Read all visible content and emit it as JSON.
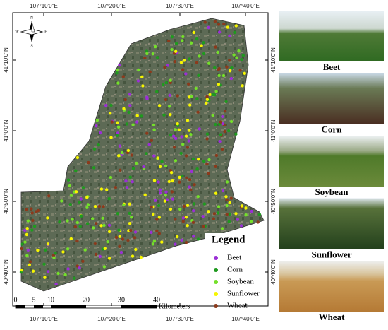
{
  "map": {
    "top_labels": [
      "107°10'0\"E",
      "107°20'0\"E",
      "107°30'0\"E",
      "107°40'0\"E"
    ],
    "bottom_labels": [
      "107°10'0\"E",
      "107°20'0\"E",
      "107°30'0\"E",
      "107°40'0\"E"
    ],
    "left_labels": [
      "41°10'0\"N",
      "41°0'0\"N",
      "40°50'0\"N",
      "40°40'0\"N"
    ],
    "right_labels": [
      "41°10'0\"N",
      "41°0'0\"N",
      "40°50'0\"N",
      "40°40'0\"N"
    ],
    "north_arrow": {
      "n": "N",
      "s": "S",
      "e": "E",
      "w": "W"
    },
    "scale_bar": {
      "labels": [
        "0",
        "5",
        "10",
        "20",
        "30",
        "40"
      ],
      "unit": "Kilometers"
    },
    "legend": {
      "title": "Legend",
      "items": [
        {
          "label": "Beet",
          "color": "#9b2fd6"
        },
        {
          "label": "Corn",
          "color": "#1f9a1f"
        },
        {
          "label": "Soybean",
          "color": "#74e02a"
        },
        {
          "label": "Sunflower",
          "color": "#f6f600"
        },
        {
          "label": "Wheat",
          "color": "#8b3a1c"
        }
      ]
    }
  },
  "photos": [
    "Beet",
    "Corn",
    "Soybean",
    "Sunflower",
    "Wheat"
  ]
}
